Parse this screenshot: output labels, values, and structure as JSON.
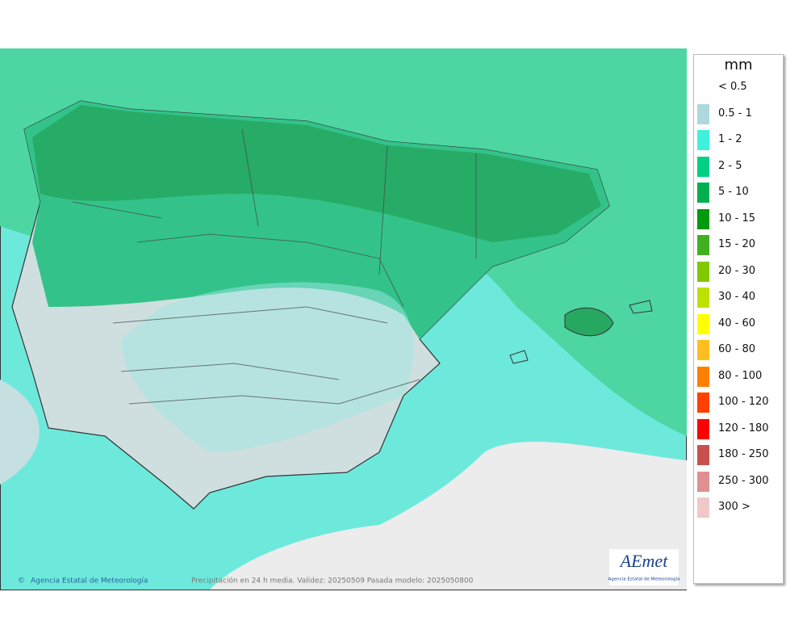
{
  "legend": {
    "title": "mm",
    "items": [
      {
        "label": "< 0.5"
      },
      {
        "label": "0.5 - 1",
        "color": "#add8dc"
      },
      {
        "label": "1 - 2",
        "color": "#3ff0dc"
      },
      {
        "label": "2 - 5",
        "color": "#00d084"
      },
      {
        "label": "5 - 10",
        "color": "#00b050"
      },
      {
        "label": "10 - 15",
        "color": "#009a10"
      },
      {
        "label": "15 - 20",
        "color": "#40b020"
      },
      {
        "label": "20 - 30",
        "color": "#80c800"
      },
      {
        "label": "30 - 40",
        "color": "#c0e000"
      },
      {
        "label": "40 - 60",
        "color": "#ffff00"
      },
      {
        "label": "60 - 80",
        "color": "#ffbe20"
      },
      {
        "label": "80 - 100",
        "color": "#ff8000"
      },
      {
        "label": "100 - 120",
        "color": "#ff4000"
      },
      {
        "label": "120 - 180",
        "color": "#ff0000"
      },
      {
        "label": "180 - 250",
        "color": "#c85050"
      },
      {
        "label": "250 - 300",
        "color": "#e09090"
      },
      {
        "label": "300 >",
        "color": "#f0c8c8"
      }
    ]
  },
  "footer": {
    "credit": "Agencia Estatal de Meteorología",
    "caption": "Precipitación en 24 h media. Validez: 20250509 Pasada modelo: 2025050800"
  },
  "logo": {
    "name": "AEmet",
    "subtitle": "Agencia Estatal de Meteorología"
  }
}
